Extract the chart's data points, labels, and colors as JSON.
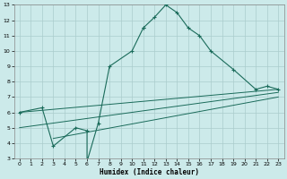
{
  "xlabel": "Humidex (Indice chaleur)",
  "background_color": "#cceaea",
  "grid_color": "#aacccc",
  "line_color": "#1a6b5a",
  "xlim": [
    -0.5,
    23.5
  ],
  "ylim": [
    3,
    13
  ],
  "xticks": [
    0,
    1,
    2,
    3,
    4,
    5,
    6,
    7,
    8,
    9,
    10,
    11,
    12,
    13,
    14,
    15,
    16,
    17,
    18,
    19,
    20,
    21,
    22,
    23
  ],
  "yticks": [
    3,
    4,
    5,
    6,
    7,
    8,
    9,
    10,
    11,
    12,
    13
  ],
  "main_line": {
    "x": [
      0,
      2,
      3,
      5,
      6,
      6,
      7,
      8,
      10,
      11,
      11,
      12,
      13,
      14,
      15,
      16,
      17,
      19,
      21,
      22,
      23
    ],
    "y": [
      6,
      6.3,
      3.8,
      5.0,
      4.8,
      2.8,
      5.3,
      9.0,
      10.0,
      11.5,
      11.5,
      12.2,
      13.0,
      12.5,
      11.5,
      11.0,
      10.0,
      8.8,
      7.5,
      7.7,
      7.5
    ]
  },
  "ref_lines": [
    {
      "x": [
        0,
        23
      ],
      "y": [
        6.0,
        7.5
      ]
    },
    {
      "x": [
        0,
        23
      ],
      "y": [
        5.0,
        7.3
      ]
    },
    {
      "x": [
        3,
        23
      ],
      "y": [
        4.3,
        7.0
      ]
    }
  ]
}
